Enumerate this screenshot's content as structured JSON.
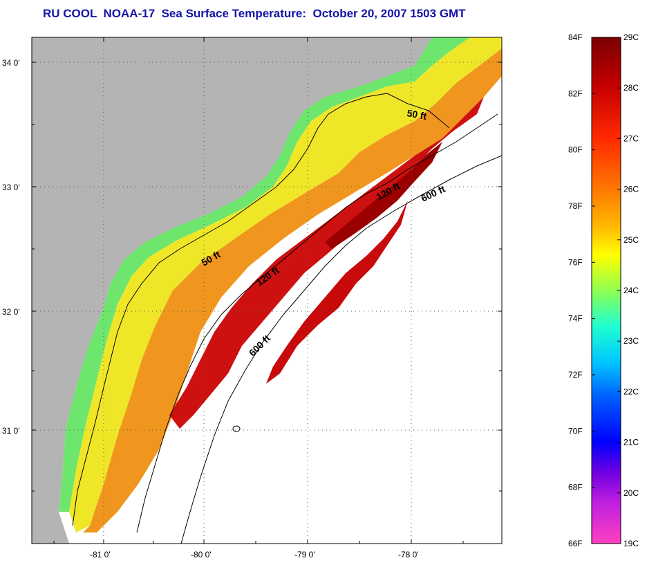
{
  "title": "RU COOL  NOAA-17  Sea Surface Temperature:  October 20, 2007 1503 GMT",
  "map": {
    "lat_labels": [
      "34 0'",
      "33 0'",
      "32 0'",
      "31 0'"
    ],
    "lon_labels": [
      "-81 0'",
      "-80 0'",
      "-79 0'",
      "-78 0'"
    ],
    "contours": [
      {
        "label": "50 ft"
      },
      {
        "label": "120 ft"
      },
      {
        "label": "600 ft"
      },
      {
        "label": "50 ft"
      },
      {
        "label": "120 ft"
      },
      {
        "label": "600 ft"
      }
    ],
    "colors": {
      "land": "#b4b4b4",
      "water_nodata": "#ffffff",
      "cool_shelf": "#6ee66e",
      "mid_shelf": "#f0f028",
      "warm": "#f08c1e",
      "gulf_stream": "#c80a0a"
    }
  },
  "colorbar": {
    "fahrenheit_labels": [
      "84F",
      "82F",
      "80F",
      "78F",
      "76F",
      "74F",
      "72F",
      "70F",
      "68F",
      "66F"
    ],
    "celsius_labels": [
      "29C",
      "28C",
      "27C",
      "26C",
      "25C",
      "24C",
      "23C",
      "22C",
      "21C",
      "20C",
      "19C"
    ],
    "gradient": [
      "#7a0000",
      "#c80000",
      "#ff2a00",
      "#ff7800",
      "#ffb400",
      "#ffff00",
      "#90ff50",
      "#20ffd0",
      "#00c8ff",
      "#0060ff",
      "#0000ff",
      "#7000e0",
      "#c020e0",
      "#ff40c0"
    ]
  }
}
